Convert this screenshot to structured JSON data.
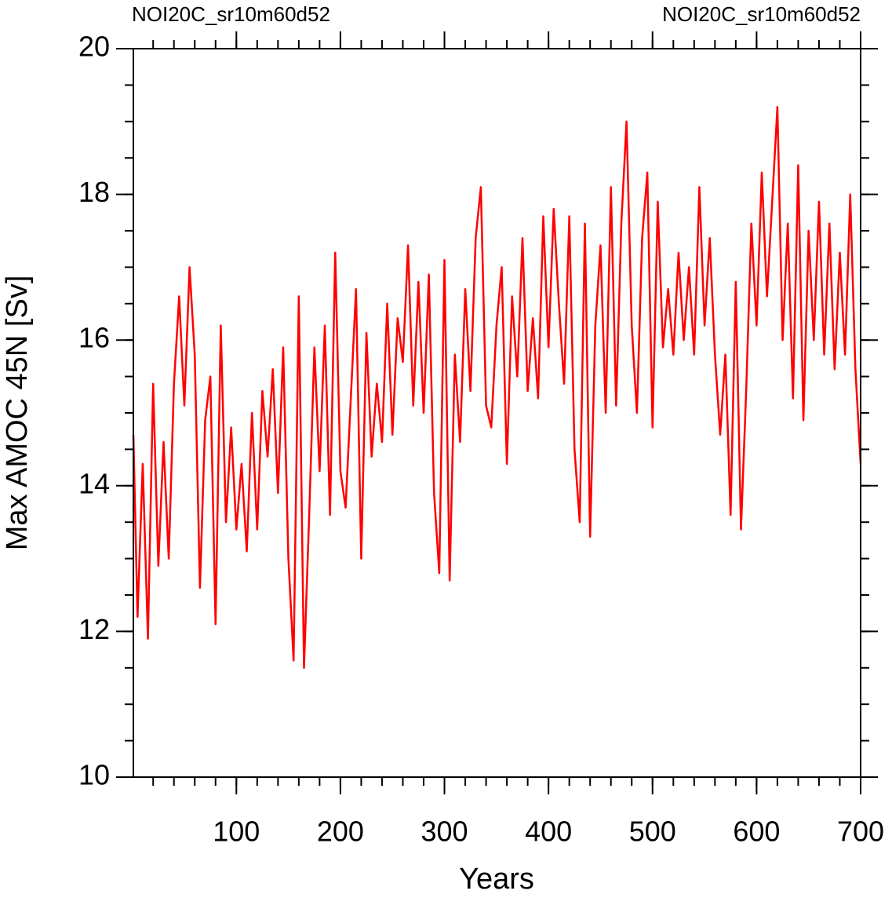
{
  "chart_data": {
    "type": "line",
    "left_title": "NOI20C_sr10m60d52",
    "left_title_color": "#0000ff",
    "right_title": "NOI20C_sr10m60d52",
    "right_title_color": "#ff0000",
    "xlabel": "Years",
    "ylabel": "Max AMOC 45N [Sv]",
    "xlim": [
      1,
      700
    ],
    "ylim": [
      10,
      20
    ],
    "xticks": [
      100,
      200,
      300,
      400,
      500,
      600,
      700
    ],
    "yticks": [
      10,
      12,
      14,
      16,
      18,
      20
    ],
    "xminor": 20,
    "yminor": 0.5,
    "x": [
      1,
      5,
      10,
      15,
      20,
      25,
      30,
      35,
      40,
      45,
      50,
      55,
      60,
      65,
      70,
      75,
      80,
      85,
      90,
      95,
      100,
      105,
      110,
      115,
      120,
      125,
      130,
      135,
      140,
      145,
      150,
      155,
      160,
      165,
      170,
      175,
      180,
      185,
      190,
      195,
      200,
      205,
      210,
      215,
      220,
      225,
      230,
      235,
      240,
      245,
      250,
      255,
      260,
      265,
      270,
      275,
      280,
      285,
      290,
      295,
      300,
      305,
      310,
      315,
      320,
      325,
      330,
      335,
      340,
      345,
      350,
      355,
      360,
      365,
      370,
      375,
      380,
      385,
      390,
      395,
      400,
      405,
      410,
      415,
      420,
      425,
      430,
      435,
      440,
      445,
      450,
      455,
      460,
      465,
      470,
      475,
      480,
      485,
      490,
      495,
      500,
      505,
      510,
      515,
      520,
      525,
      530,
      535,
      540,
      545,
      550,
      555,
      560,
      565,
      570,
      575,
      580,
      585,
      590,
      595,
      600,
      605,
      610,
      615,
      620,
      625,
      630,
      635,
      640,
      645,
      650,
      655,
      660,
      665,
      670,
      675,
      680,
      685,
      690,
      695,
      700
    ],
    "series": [
      {
        "color": "#ff0000",
        "values": [
          14.7,
          12.2,
          14.3,
          11.9,
          15.4,
          12.9,
          14.6,
          13.0,
          15.4,
          16.6,
          15.1,
          17.0,
          15.8,
          12.6,
          14.9,
          15.5,
          12.1,
          16.2,
          13.5,
          14.8,
          13.4,
          14.3,
          13.1,
          15.0,
          13.4,
          15.3,
          14.4,
          15.6,
          13.9,
          15.9,
          13.0,
          11.6,
          16.6,
          11.5,
          13.6,
          15.9,
          14.2,
          16.2,
          13.6,
          17.2,
          14.2,
          13.7,
          15.2,
          16.7,
          13.0,
          16.1,
          14.4,
          15.4,
          14.6,
          16.5,
          14.7,
          16.3,
          15.7,
          17.3,
          15.1,
          16.8,
          15.0,
          16.9,
          13.9,
          12.8,
          17.1,
          12.7,
          15.8,
          14.6,
          16.7,
          15.3,
          17.4,
          18.1,
          15.1,
          14.8,
          16.2,
          17.0,
          14.3,
          16.6,
          15.5,
          17.4,
          15.3,
          16.3,
          15.2,
          17.7,
          15.9,
          17.8,
          16.5,
          15.4,
          17.7,
          14.5,
          13.5,
          17.6,
          13.3,
          16.2,
          17.3,
          15.0,
          18.1,
          15.1,
          17.6,
          19.0,
          16.2,
          15.0,
          17.4,
          18.3,
          14.8,
          17.9,
          15.9,
          16.7,
          15.8,
          17.2,
          16.0,
          17.0,
          15.8,
          18.1,
          16.2,
          17.4,
          15.8,
          14.7,
          15.8,
          13.6,
          16.8,
          13.4,
          15.3,
          17.6,
          16.2,
          18.3,
          16.6,
          17.9,
          19.2,
          16.0,
          17.6,
          15.2,
          18.4,
          14.9,
          17.5,
          16.0,
          17.9,
          15.8,
          17.6,
          15.6,
          17.2,
          15.8,
          18.0,
          15.6,
          14.3
        ]
      }
    ]
  }
}
